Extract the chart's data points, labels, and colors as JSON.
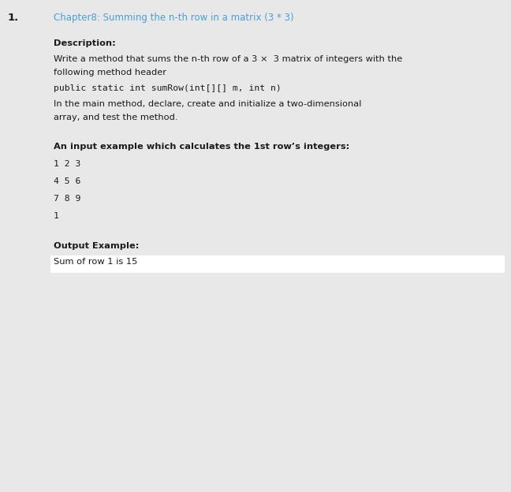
{
  "bg_color": "#e8e8e8",
  "white_color": "#ffffff",
  "number": "1.",
  "title": "Chapter8: Summing the n-th row in a matrix (3 * 3)",
  "title_color": "#4a9fd4",
  "desc_header": "Description:",
  "desc_lines": [
    "Write a method that sums the n-th row of a 3 ×  3 matrix of integers with the",
    "following method header",
    "public static int sumRow(int[][] m, int n)",
    "In the main method, declare, create and initialize a two-dimensional",
    "array, and test the method."
  ],
  "desc_monospace_line": "public static int sumRow(int[][] m, int n)",
  "input_header": "An input example which calculates the 1st row’s integers:",
  "input_lines": [
    "1 2 3",
    "4 5 6",
    "7 8 9",
    "1"
  ],
  "output_header": "Output Example:",
  "output_line": "Sum of row 1 is 15",
  "font_size_title": 8.5,
  "font_size_body": 8.2,
  "font_size_number": 9.5,
  "font_size_mono": 8.2
}
